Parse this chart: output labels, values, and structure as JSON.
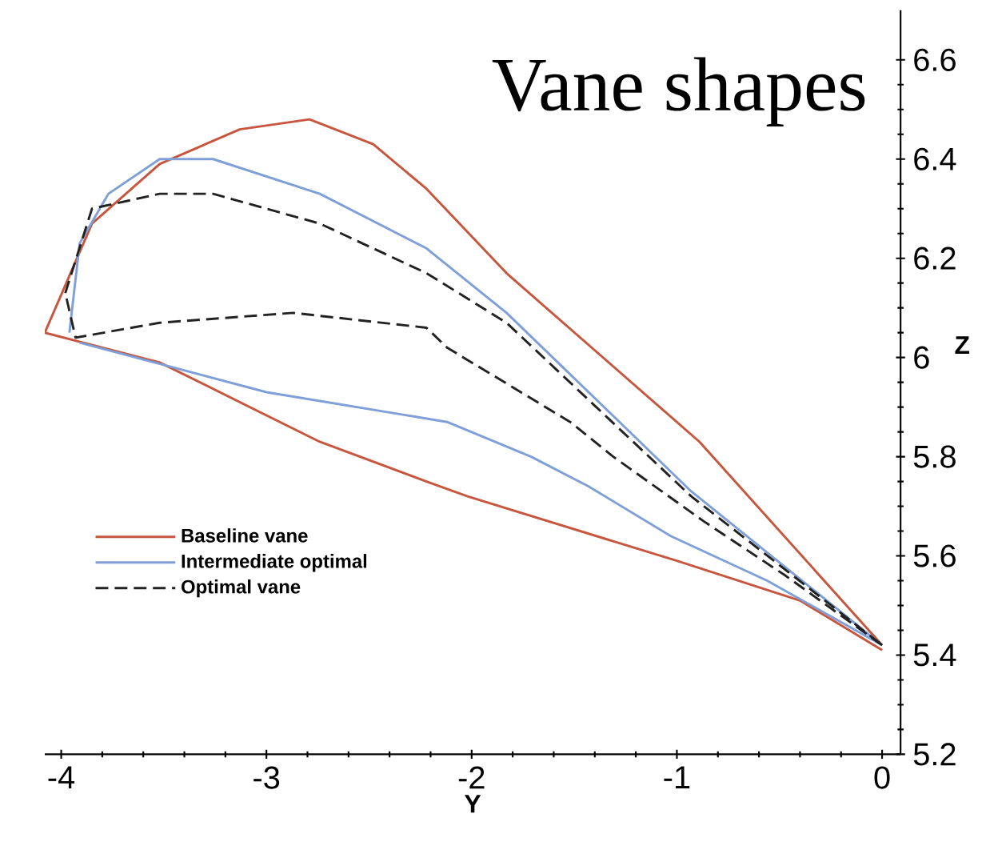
{
  "chart_data": {
    "type": "line",
    "title": "Vane shapes",
    "xlabel": "Y",
    "ylabel": "Z",
    "xlim": [
      -4.08,
      0.09
    ],
    "ylim": [
      5.2,
      6.7
    ],
    "xticks": [
      -4,
      -3,
      -2,
      -1,
      0
    ],
    "yticks": [
      5.2,
      5.4,
      5.6,
      5.8,
      6,
      6.2,
      6.4,
      6.6
    ],
    "legend": "bottom left",
    "grid": false,
    "marker": "none",
    "series": [
      {
        "name": "Baseline vane",
        "color": "#c8553d",
        "line_style": "solid",
        "x": [
          0,
          -0.4,
          -1.0,
          -2.02,
          -2.22,
          -2.74,
          -3.52,
          -4.08
        ],
        "values": [
          5.41,
          5.51,
          5.59,
          5.72,
          5.75,
          5.83,
          5.99,
          6.05
        ]
      },
      {
        "color": "#c8553d",
        "line_style": "solid",
        "x": [
          -4.08,
          -3.85,
          -3.52,
          -3.13,
          -2.79,
          -2.48,
          -2.22,
          -1.83,
          -0.89,
          0
        ],
        "values": [
          6.05,
          6.27,
          6.39,
          6.46,
          6.48,
          6.43,
          6.34,
          6.17,
          5.83,
          5.42
        ]
      },
      {
        "name": "Intermediate optimal",
        "color": "#7f9fd8",
        "line_style": "solid",
        "x": [
          0,
          -0.56,
          -1.03,
          -1.43,
          -1.71,
          -2.12,
          -3.0,
          -3.91
        ],
        "values": [
          5.42,
          5.55,
          5.64,
          5.74,
          5.8,
          5.87,
          5.93,
          6.03
        ]
      },
      {
        "color": "#7f9fd8",
        "line_style": "solid",
        "x": [
          -3.96,
          -3.91,
          -3.77,
          -3.52,
          -3.26,
          -2.74,
          -2.22,
          -1.83,
          -0.93,
          0
        ],
        "values": [
          6.05,
          6.23,
          6.33,
          6.4,
          6.4,
          6.33,
          6.22,
          6.09,
          5.73,
          5.42
        ]
      },
      {
        "name": "Optimal vane",
        "color": "#222222",
        "line_style": "dashed",
        "x": [
          0,
          -0.47,
          -0.87,
          -1.31,
          -1.52,
          -2.12,
          -2.22,
          -2.87,
          -3.52,
          -3.93,
          -3.98
        ],
        "values": [
          5.42,
          5.56,
          5.67,
          5.8,
          5.87,
          6.02,
          6.06,
          6.09,
          6.07,
          6.04,
          6.13
        ]
      },
      {
        "color": "#222222",
        "line_style": "dashed",
        "x": [
          -3.98,
          -3.85,
          -3.52,
          -3.26,
          -2.74,
          -2.22,
          -1.83,
          -0.93,
          0
        ],
        "values": [
          6.13,
          6.3,
          6.33,
          6.33,
          6.27,
          6.17,
          6.07,
          5.72,
          5.42
        ]
      }
    ]
  }
}
